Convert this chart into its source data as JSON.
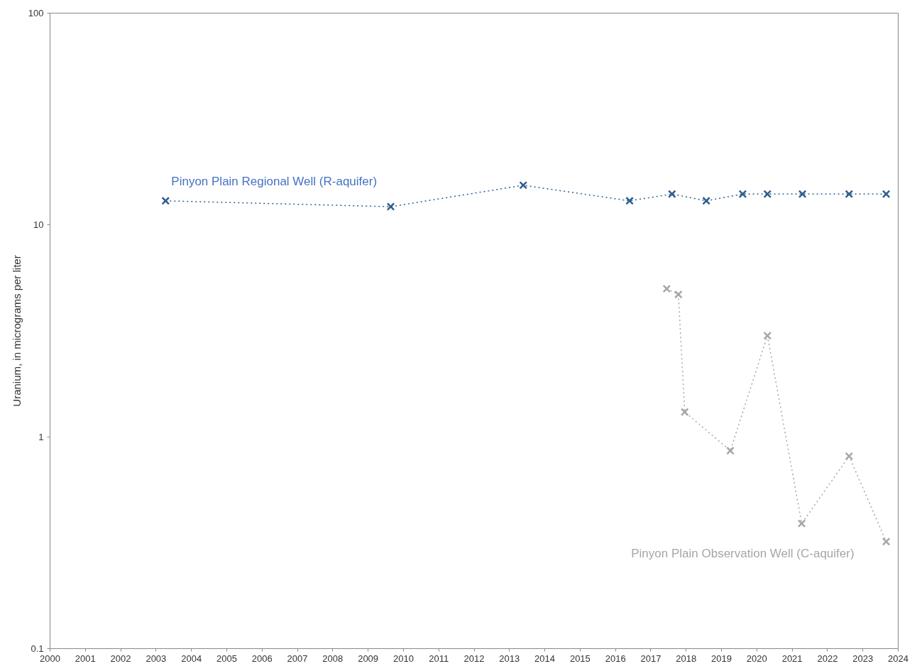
{
  "chart_data": {
    "type": "line",
    "ylabel": "Uranium, in micrograms per liter",
    "log": "y",
    "grid": false,
    "marker": "cross",
    "line_style": "dotted",
    "xlim": [
      2000,
      2024
    ],
    "xticks": [
      2000,
      2001,
      2002,
      2003,
      2004,
      2005,
      2006,
      2007,
      2008,
      2009,
      2010,
      2011,
      2012,
      2013,
      2014,
      2015,
      2016,
      2017,
      2018,
      2019,
      2020,
      2021,
      2022,
      2023,
      2024
    ],
    "ylim": [
      0.1,
      100
    ],
    "yticks": [
      0.1,
      1,
      10,
      100
    ],
    "series": [
      {
        "name": "Pinyon Plain Regional Well (R-aquifer)",
        "color": "#2e5f8f",
        "x": [
          2003.27,
          2009.64,
          2013.39,
          2016.4,
          2017.6,
          2018.57,
          2019.6,
          2020.3,
          2021.29,
          2022.61,
          2023.66
        ],
        "values": [
          13,
          12.2,
          15.4,
          13,
          14,
          13,
          14,
          14,
          14,
          14,
          14
        ]
      },
      {
        "name": "Pinyon Plain Observation Well (C-aquifer)",
        "color": "#a6a6a6",
        "x": [
          2017.45,
          2017.78,
          2017.96,
          2019.25,
          2020.3,
          2021.27,
          2022.61,
          2023.66
        ],
        "values": [
          5.0,
          4.7,
          1.31,
          0.86,
          3.0,
          0.39,
          0.81,
          0.32
        ]
      }
    ]
  }
}
